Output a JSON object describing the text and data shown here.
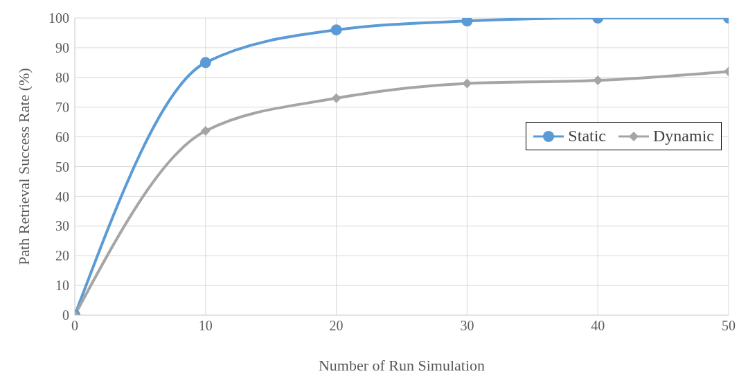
{
  "chart_data": {
    "type": "line",
    "xlabel": "Number of Run Simulation",
    "ylabel": "Path Retrieval Success Rate (%)",
    "x": [
      0,
      10,
      20,
      30,
      40,
      50
    ],
    "series": [
      {
        "name": "Static",
        "color": "#5b9bd5",
        "values": [
          0,
          85,
          96,
          99,
          100,
          100
        ],
        "marker": "circle"
      },
      {
        "name": "Dynamic",
        "color": "#a5a5a5",
        "values": [
          0,
          62,
          73,
          78,
          79,
          82
        ],
        "marker": "diamond"
      }
    ],
    "xlim": [
      0,
      50
    ],
    "xticks": [
      0,
      10,
      20,
      30,
      40,
      50
    ],
    "ylim": [
      0,
      100
    ],
    "yticks": [
      0,
      10,
      20,
      30,
      40,
      50,
      60,
      70,
      80,
      90,
      100
    ],
    "grid": true,
    "legend": "right"
  }
}
